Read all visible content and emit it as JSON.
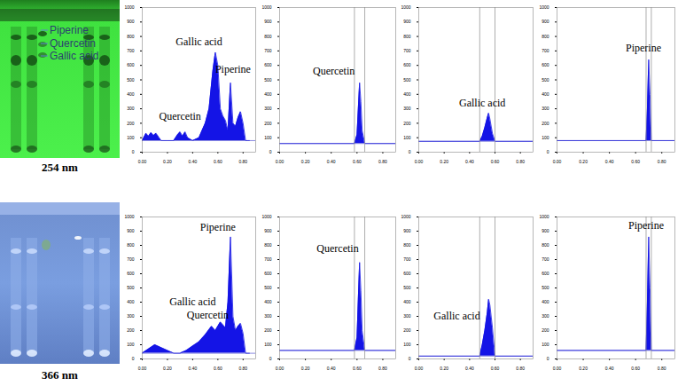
{
  "plates": [
    {
      "label": "254 nm",
      "spots": [
        "Piperine",
        "Quercetin",
        "Gallic acid"
      ]
    },
    {
      "label": "366 nm"
    }
  ],
  "chart_data": [
    {
      "type": "area",
      "color": "#1414e6",
      "xlim": [
        0,
        0.9
      ],
      "xticks": [
        {
          "value": 0,
          "label": "0.00"
        },
        {
          "value": 0.2,
          "label": "0.20"
        },
        {
          "value": 0.4,
          "label": "0.40"
        },
        {
          "value": 0.6,
          "label": "0.60"
        },
        {
          "value": 0.8,
          "label": "0.80"
        }
      ],
      "ylim": [
        0,
        1000
      ],
      "yticks": [
        0,
        100,
        200,
        300,
        400,
        500,
        600,
        700,
        800,
        900,
        1000
      ],
      "baseline": 80,
      "x": [
        0.0,
        0.03,
        0.05,
        0.07,
        0.09,
        0.11,
        0.13,
        0.15,
        0.2,
        0.25,
        0.28,
        0.3,
        0.32,
        0.34,
        0.36,
        0.4,
        0.45,
        0.5,
        0.53,
        0.56,
        0.58,
        0.6,
        0.62,
        0.64,
        0.66,
        0.68,
        0.7,
        0.72,
        0.74,
        0.76,
        0.78,
        0.8,
        0.82,
        0.85
      ],
      "values": [
        80,
        130,
        110,
        135,
        115,
        130,
        105,
        80,
        80,
        80,
        120,
        140,
        110,
        140,
        100,
        80,
        100,
        200,
        300,
        560,
        690,
        600,
        300,
        250,
        220,
        150,
        480,
        200,
        180,
        240,
        280,
        200,
        80,
        80
      ],
      "annotations": [
        {
          "text": "Gallic acid",
          "x": 0.45,
          "y": 760
        },
        {
          "text": "Piperine",
          "x": 0.72,
          "y": 570
        },
        {
          "text": "Quercetin",
          "x": 0.3,
          "y": 250
        }
      ]
    },
    {
      "type": "area",
      "color": "#1414e6",
      "xlim": [
        0,
        0.9
      ],
      "xticks": [
        {
          "value": 0,
          "label": "0.00"
        },
        {
          "value": 0.2,
          "label": "0.20"
        },
        {
          "value": 0.4,
          "label": "0.40"
        },
        {
          "value": 0.6,
          "label": "0.60"
        },
        {
          "value": 0.8,
          "label": "0.80"
        }
      ],
      "ylim": [
        0,
        1000
      ],
      "yticks": [
        0,
        100,
        200,
        300,
        400,
        500,
        600,
        700,
        800,
        900,
        1000
      ],
      "baseline": 60,
      "x": [
        0.0,
        0.58,
        0.6,
        0.61,
        0.62,
        0.63,
        0.64,
        0.66,
        0.9
      ],
      "values": [
        60,
        60,
        120,
        300,
        480,
        350,
        150,
        60,
        60
      ],
      "integration_bounds": [
        0.58,
        0.66
      ],
      "annotations": [
        {
          "text": "Quercetin",
          "x": 0.42,
          "y": 560
        }
      ]
    },
    {
      "type": "area",
      "color": "#1414e6",
      "xlim": [
        0,
        0.9
      ],
      "xticks": [
        {
          "value": 0,
          "label": "0.00"
        },
        {
          "value": 0.2,
          "label": "0.20"
        },
        {
          "value": 0.4,
          "label": "0.40"
        },
        {
          "value": 0.6,
          "label": "0.60"
        },
        {
          "value": 0.8,
          "label": "0.80"
        }
      ],
      "ylim": [
        0,
        1000
      ],
      "yticks": [
        0,
        100,
        200,
        300,
        400,
        500,
        600,
        700,
        800,
        900,
        1000
      ],
      "baseline": 75,
      "x": [
        0.0,
        0.48,
        0.5,
        0.52,
        0.54,
        0.55,
        0.56,
        0.58,
        0.6,
        0.9
      ],
      "values": [
        75,
        75,
        110,
        170,
        240,
        270,
        230,
        130,
        75,
        75
      ],
      "integration_bounds": [
        0.48,
        0.6
      ],
      "annotations": [
        {
          "text": "Gallic acid",
          "x": 0.5,
          "y": 340
        }
      ]
    },
    {
      "type": "area",
      "color": "#1414e6",
      "xlim": [
        0,
        0.9
      ],
      "xticks": [
        {
          "value": 0,
          "label": "0.00"
        },
        {
          "value": 0.2,
          "label": "0.20"
        },
        {
          "value": 0.4,
          "label": "0.40"
        },
        {
          "value": 0.6,
          "label": "0.60"
        },
        {
          "value": 0.8,
          "label": "0.80"
        }
      ],
      "ylim": [
        0,
        1000
      ],
      "yticks": [
        0,
        100,
        200,
        300,
        400,
        500,
        600,
        700,
        800,
        900,
        1000
      ],
      "baseline": 80,
      "x": [
        0.0,
        0.68,
        0.69,
        0.7,
        0.71,
        0.72,
        0.9
      ],
      "values": [
        80,
        80,
        300,
        640,
        400,
        80,
        80
      ],
      "integration_bounds": [
        0.68,
        0.72
      ],
      "annotations": [
        {
          "text": "Piperine",
          "x": 0.66,
          "y": 720
        }
      ]
    },
    {
      "type": "area",
      "color": "#1414e6",
      "xlim": [
        0,
        0.9
      ],
      "xticks": [
        {
          "value": 0,
          "label": "0.00"
        },
        {
          "value": 0.2,
          "label": "0.20"
        },
        {
          "value": 0.4,
          "label": "0.40"
        },
        {
          "value": 0.6,
          "label": "0.60"
        },
        {
          "value": 0.8,
          "label": "0.80"
        }
      ],
      "ylim": [
        0,
        1000
      ],
      "yticks": [
        0,
        100,
        200,
        300,
        400,
        500,
        600,
        700,
        800,
        900,
        1000
      ],
      "baseline": 40,
      "x": [
        0.0,
        0.05,
        0.1,
        0.15,
        0.2,
        0.25,
        0.3,
        0.35,
        0.4,
        0.45,
        0.5,
        0.55,
        0.58,
        0.62,
        0.66,
        0.68,
        0.7,
        0.72,
        0.74,
        0.76,
        0.78,
        0.8,
        0.82,
        0.85
      ],
      "values": [
        40,
        70,
        100,
        80,
        60,
        40,
        40,
        60,
        90,
        120,
        170,
        230,
        200,
        260,
        220,
        400,
        860,
        300,
        200,
        230,
        250,
        180,
        40,
        40
      ],
      "annotations": [
        {
          "text": "Piperine",
          "x": 0.6,
          "y": 930
        },
        {
          "text": "Gallic acid",
          "x": 0.4,
          "y": 400
        },
        {
          "text": "Quercetin",
          "x": 0.52,
          "y": 310
        }
      ]
    },
    {
      "type": "area",
      "color": "#1414e6",
      "xlim": [
        0,
        0.9
      ],
      "xticks": [
        {
          "value": 0,
          "label": "0.00"
        },
        {
          "value": 0.2,
          "label": "0.20"
        },
        {
          "value": 0.4,
          "label": "0.40"
        },
        {
          "value": 0.6,
          "label": "0.60"
        },
        {
          "value": 0.8,
          "label": "0.80"
        }
      ],
      "ylim": [
        0,
        1000
      ],
      "yticks": [
        0,
        100,
        200,
        300,
        400,
        500,
        600,
        700,
        800,
        900,
        1000
      ],
      "baseline": 60,
      "x": [
        0.0,
        0.58,
        0.6,
        0.61,
        0.62,
        0.63,
        0.64,
        0.66,
        0.9
      ],
      "values": [
        60,
        60,
        150,
        420,
        680,
        480,
        200,
        60,
        60
      ],
      "integration_bounds": [
        0.58,
        0.66
      ],
      "annotations": [
        {
          "text": "Quercetin",
          "x": 0.45,
          "y": 780
        }
      ]
    },
    {
      "type": "area",
      "color": "#1414e6",
      "xlim": [
        0,
        0.9
      ],
      "xticks": [
        {
          "value": 0,
          "label": "0.00"
        },
        {
          "value": 0.2,
          "label": "0.20"
        },
        {
          "value": 0.4,
          "label": "0.40"
        },
        {
          "value": 0.6,
          "label": "0.60"
        },
        {
          "value": 0.8,
          "label": "0.80"
        }
      ],
      "ylim": [
        0,
        1000
      ],
      "yticks": [
        0,
        100,
        200,
        300,
        400,
        500,
        600,
        700,
        800,
        900,
        1000
      ],
      "baseline": 20,
      "x": [
        0.0,
        0.48,
        0.5,
        0.52,
        0.54,
        0.55,
        0.56,
        0.58,
        0.6,
        0.9
      ],
      "values": [
        20,
        20,
        100,
        200,
        330,
        420,
        380,
        220,
        20,
        20
      ],
      "integration_bounds": [
        0.48,
        0.6
      ],
      "annotations": [
        {
          "text": "Gallic acid",
          "x": 0.3,
          "y": 300
        }
      ]
    },
    {
      "type": "area",
      "color": "#1414e6",
      "xlim": [
        0,
        0.9
      ],
      "xticks": [
        {
          "value": 0,
          "label": "0.00"
        },
        {
          "value": 0.2,
          "label": "0.20"
        },
        {
          "value": 0.4,
          "label": "0.40"
        },
        {
          "value": 0.6,
          "label": "0.60"
        },
        {
          "value": 0.8,
          "label": "0.80"
        }
      ],
      "ylim": [
        0,
        1000
      ],
      "yticks": [
        0,
        100,
        200,
        300,
        400,
        500,
        600,
        700,
        800,
        900,
        1000
      ],
      "baseline": 60,
      "x": [
        0.0,
        0.68,
        0.69,
        0.7,
        0.71,
        0.72,
        0.9
      ],
      "values": [
        60,
        60,
        400,
        860,
        500,
        60,
        60
      ],
      "integration_bounds": [
        0.68,
        0.72
      ],
      "annotations": [
        {
          "text": "Piperine",
          "x": 0.68,
          "y": 940
        }
      ]
    }
  ]
}
